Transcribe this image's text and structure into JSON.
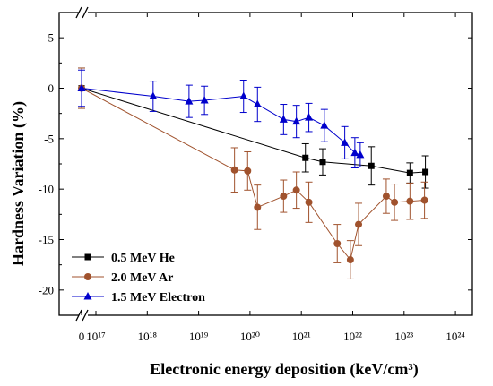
{
  "chart_data": {
    "type": "line",
    "xlabel": "Electronic energy deposition (keV/cm³)",
    "ylabel": "Hardness Variation (%)",
    "x_scale": "log-with-break",
    "x_break_tick_label": "0",
    "x_tick_labels": [
      "10¹⁷",
      "10¹⁸",
      "10¹⁹",
      "10²⁰",
      "10²¹",
      "10²²",
      "10²³",
      "10²⁴"
    ],
    "x_tick_exponents": [
      17,
      18,
      19,
      20,
      21,
      22,
      23,
      24
    ],
    "ylim": [
      -22.5,
      7.5
    ],
    "y_ticks": [
      5,
      0,
      -5,
      -10,
      -15,
      -20
    ],
    "y_tick_labels": [
      "5",
      "0",
      "-5",
      "-10",
      "-15",
      "-20"
    ],
    "legend_position": "bottom-left",
    "series": [
      {
        "name": "0.5 MeV He",
        "color": "#000000",
        "marker": "square",
        "points": [
          {
            "x": 0,
            "y": 0,
            "err": 2.0
          },
          {
            "x": 1.2e+21,
            "y": -6.9,
            "err": 1.4
          },
          {
            "x": 2.6e+21,
            "y": -7.3,
            "err": 1.3
          },
          {
            "x": 2.3e+22,
            "y": -7.7,
            "err": 1.9
          },
          {
            "x": 1.3e+23,
            "y": -8.4,
            "err": 1.0
          },
          {
            "x": 2.6e+23,
            "y": -8.3,
            "err": 1.6
          }
        ]
      },
      {
        "name": "2.0 MeV Ar",
        "color": "#a0522d",
        "marker": "circle",
        "points": [
          {
            "x": 0,
            "y": 0,
            "err": 2.0
          },
          {
            "x": 5e+19,
            "y": -8.1,
            "err": 2.2
          },
          {
            "x": 9e+19,
            "y": -8.2,
            "err": 1.9
          },
          {
            "x": 1.4e+20,
            "y": -11.8,
            "err": 2.2
          },
          {
            "x": 4.5e+20,
            "y": -10.7,
            "err": 1.6
          },
          {
            "x": 8e+20,
            "y": -10.1,
            "err": 1.8
          },
          {
            "x": 1.4e+21,
            "y": -11.3,
            "err": 2.0
          },
          {
            "x": 5e+21,
            "y": -15.4,
            "err": 1.9
          },
          {
            "x": 9e+21,
            "y": -17.0,
            "err": 1.9
          },
          {
            "x": 1.3e+22,
            "y": -13.5,
            "err": 2.1
          },
          {
            "x": 4.5e+22,
            "y": -10.7,
            "err": 1.7
          },
          {
            "x": 6.5e+22,
            "y": -11.3,
            "err": 1.8
          },
          {
            "x": 1.3e+23,
            "y": -11.2,
            "err": 1.8
          },
          {
            "x": 2.5e+23,
            "y": -11.1,
            "err": 1.8
          }
        ]
      },
      {
        "name": "1.5 MeV Electron",
        "color": "#0000cc",
        "marker": "triangle",
        "points": [
          {
            "x": 0,
            "y": 0,
            "err": 1.8
          },
          {
            "x": 1.3e+18,
            "y": -0.8,
            "err": 1.5
          },
          {
            "x": 6.5e+18,
            "y": -1.3,
            "err": 1.6
          },
          {
            "x": 1.3e+19,
            "y": -1.2,
            "err": 1.4
          },
          {
            "x": 7.5e+19,
            "y": -0.8,
            "err": 1.6
          },
          {
            "x": 1.4e+20,
            "y": -1.6,
            "err": 1.7
          },
          {
            "x": 4.5e+20,
            "y": -3.1,
            "err": 1.5
          },
          {
            "x": 8e+20,
            "y": -3.3,
            "err": 1.6
          },
          {
            "x": 1.4e+21,
            "y": -2.9,
            "err": 1.4
          },
          {
            "x": 2.8e+21,
            "y": -3.7,
            "err": 1.6
          },
          {
            "x": 7e+21,
            "y": -5.4,
            "err": 1.6
          },
          {
            "x": 1.1e+22,
            "y": -6.4,
            "err": 1.5
          },
          {
            "x": 1.4e+22,
            "y": -6.6,
            "err": 1.2
          }
        ]
      }
    ]
  }
}
